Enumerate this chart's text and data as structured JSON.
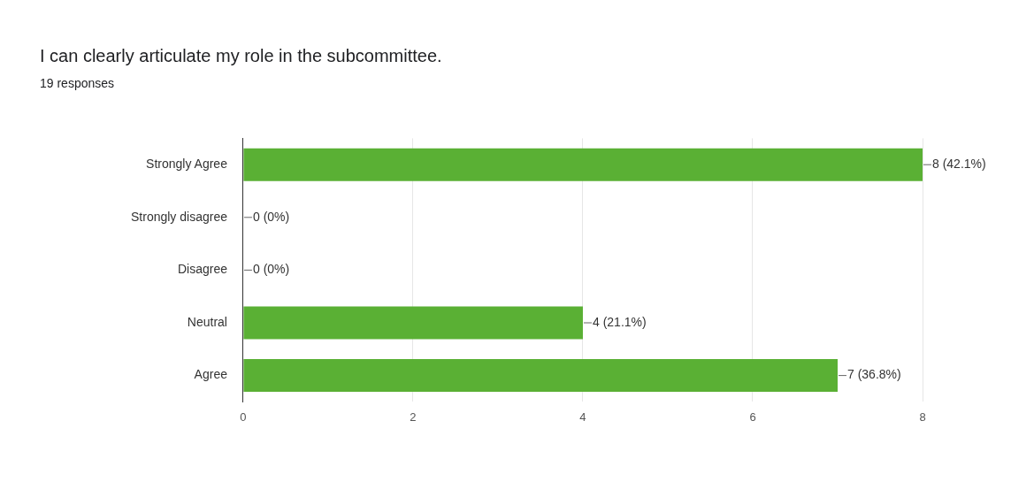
{
  "chart_data": {
    "type": "bar",
    "orientation": "horizontal",
    "title": "I can clearly articulate my role in the subcommittee.",
    "subtitle": "19 responses",
    "categories": [
      "Strongly Agree",
      "Strongly disagree",
      "Disagree",
      "Neutral",
      "Agree"
    ],
    "values": [
      8,
      0,
      0,
      4,
      7
    ],
    "value_labels": [
      "8 (42.1%)",
      "0 (0%)",
      "0 (0%)",
      "4 (21.1%)",
      "7 (36.8%)"
    ],
    "color": "#5ab034",
    "xlim": [
      0,
      8
    ],
    "xticks": [
      0,
      2,
      4,
      6,
      8
    ],
    "grid": "x",
    "legend": false
  }
}
